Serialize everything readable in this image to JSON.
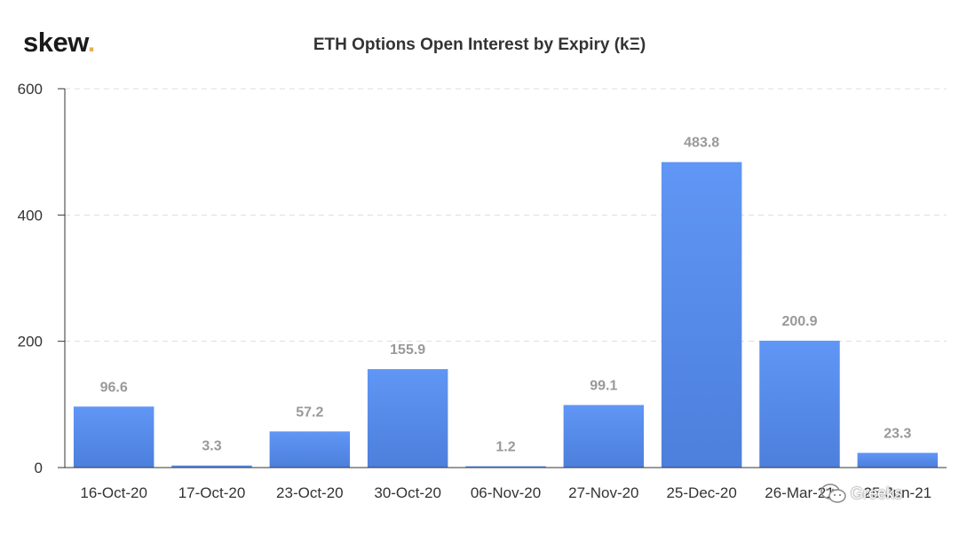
{
  "brand": {
    "name": "skew",
    "dot": "."
  },
  "watermark": {
    "text": "Greeks"
  },
  "colors": {
    "bar_top": "#6096f5",
    "bar_bottom": "#4d7fdc",
    "grid": "#dddddd",
    "axis": "#333333"
  },
  "chart_data": {
    "type": "bar",
    "title": "ETH Options Open Interest by Expiry (kΞ)",
    "xlabel": "",
    "ylabel": "",
    "categories": [
      "16-Oct-20",
      "17-Oct-20",
      "23-Oct-20",
      "30-Oct-20",
      "06-Nov-20",
      "27-Nov-20",
      "25-Dec-20",
      "26-Mar-21",
      "25-Jun-21"
    ],
    "values": [
      96.6,
      3.3,
      57.2,
      155.9,
      1.2,
      99.1,
      483.8,
      200.9,
      23.3
    ],
    "value_labels": [
      "96.6",
      "3.3",
      "57.2",
      "155.9",
      "1.2",
      "99.1",
      "483.8",
      "200.9",
      "23.3"
    ],
    "ylim": [
      0,
      600
    ],
    "yticks": [
      0,
      200,
      400,
      600
    ],
    "grid": true,
    "legend": "none"
  }
}
